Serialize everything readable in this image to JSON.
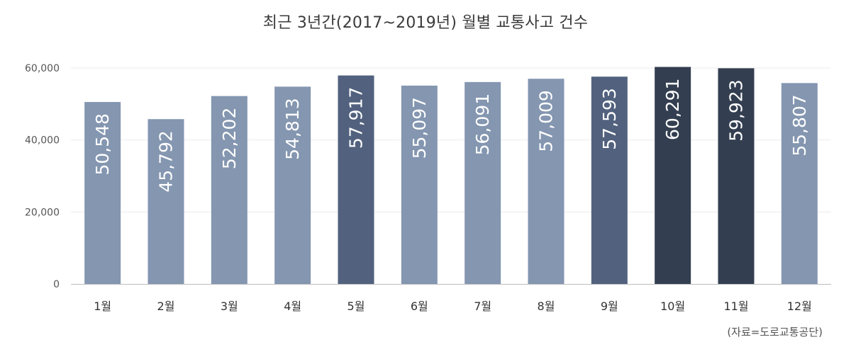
{
  "chart_data": {
    "type": "bar",
    "title": "최근 3년간(2017~2019년) 월별 교통사고 건수",
    "categories": [
      "1월",
      "2월",
      "3월",
      "4월",
      "5월",
      "6월",
      "7월",
      "8월",
      "9월",
      "10월",
      "11월",
      "12월"
    ],
    "values": [
      50548,
      45792,
      52202,
      54813,
      57917,
      55097,
      56091,
      57009,
      57593,
      60291,
      59923,
      55807
    ],
    "value_labels": [
      "50,548",
      "45,792",
      "52,202",
      "54,813",
      "57,917",
      "55,097",
      "56,091",
      "57,009",
      "57,593",
      "60,291",
      "59,923",
      "55,807"
    ],
    "bar_colors": [
      "#8496b0",
      "#8496b0",
      "#8496b0",
      "#8496b0",
      "#51617e",
      "#8496b0",
      "#8496b0",
      "#8496b0",
      "#51617e",
      "#333f50",
      "#333f50",
      "#8496b0"
    ],
    "ylim": [
      0,
      60000
    ],
    "yticks": [
      0,
      20000,
      40000,
      60000
    ],
    "ytick_labels": [
      "0",
      "20,000",
      "40,000",
      "60,000"
    ],
    "grid": true,
    "xlabel": "",
    "ylabel": ""
  },
  "source_note": "(자료=도로교통공단)"
}
